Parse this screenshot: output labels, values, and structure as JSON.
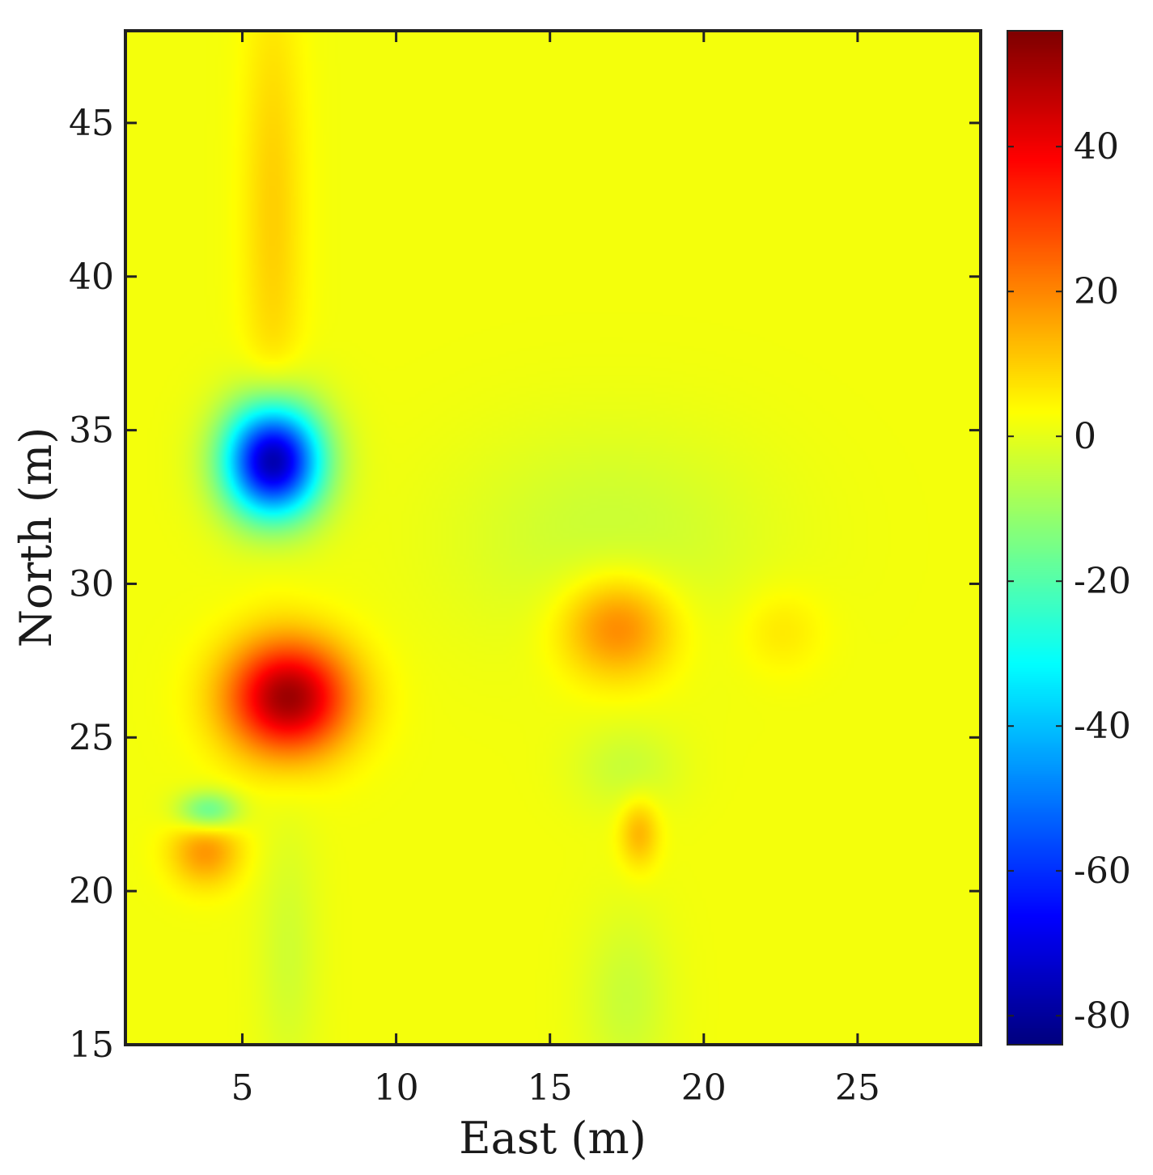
{
  "chart_data": {
    "type": "heatmap",
    "title": "",
    "xlabel": "East (m)",
    "ylabel": "North (m)",
    "xlim": [
      1.2,
      29.0
    ],
    "ylim": [
      15,
      48
    ],
    "xticks": [
      5,
      10,
      15,
      20,
      25
    ],
    "yticks": [
      15,
      20,
      25,
      30,
      35,
      40,
      45
    ],
    "xtick_labels": [
      "5",
      "10",
      "15",
      "20",
      "25"
    ],
    "ytick_labels": [
      "15",
      "20",
      "25",
      "30",
      "35",
      "40",
      "45"
    ],
    "colorbar": {
      "colormap": "jet",
      "range": [
        -84,
        56
      ],
      "ticks": [
        -80,
        -60,
        -40,
        -20,
        0,
        20,
        40
      ],
      "tick_labels": [
        "-80",
        "-60",
        "-40",
        "-20",
        "0",
        "20",
        "40"
      ]
    },
    "background_value": 2,
    "grid": false,
    "anomalies": [
      {
        "x": 6.0,
        "y": 34.0,
        "value": -82,
        "sx": 1.1,
        "sy": 1.3
      },
      {
        "x": 6.5,
        "y": 26.3,
        "value": 50,
        "sx": 1.4,
        "sy": 1.3
      },
      {
        "x": 17.2,
        "y": 28.6,
        "value": 20,
        "sx": 1.3,
        "sy": 1.2
      },
      {
        "x": 3.8,
        "y": 21.3,
        "value": 16,
        "sx": 0.8,
        "sy": 0.8
      },
      {
        "x": 3.9,
        "y": 22.6,
        "value": -22,
        "sx": 0.7,
        "sy": 0.45
      },
      {
        "x": 17.9,
        "y": 21.9,
        "value": 12,
        "sx": 0.45,
        "sy": 0.8
      },
      {
        "x": 6.0,
        "y": 42.0,
        "value": 8,
        "sx": 0.7,
        "sy": 5.5
      },
      {
        "x": 17.0,
        "y": 31.5,
        "value": -6,
        "sx": 3.5,
        "sy": 2.5
      },
      {
        "x": 17.5,
        "y": 16.5,
        "value": -6,
        "sx": 1.0,
        "sy": 2.0
      },
      {
        "x": 6.5,
        "y": 18.0,
        "value": -5,
        "sx": 0.7,
        "sy": 3.0
      },
      {
        "x": 17.5,
        "y": 24.0,
        "value": -6,
        "sx": 1.2,
        "sy": 1.0
      },
      {
        "x": 22.5,
        "y": 28.5,
        "value": 5,
        "sx": 1.0,
        "sy": 1.0
      }
    ]
  }
}
